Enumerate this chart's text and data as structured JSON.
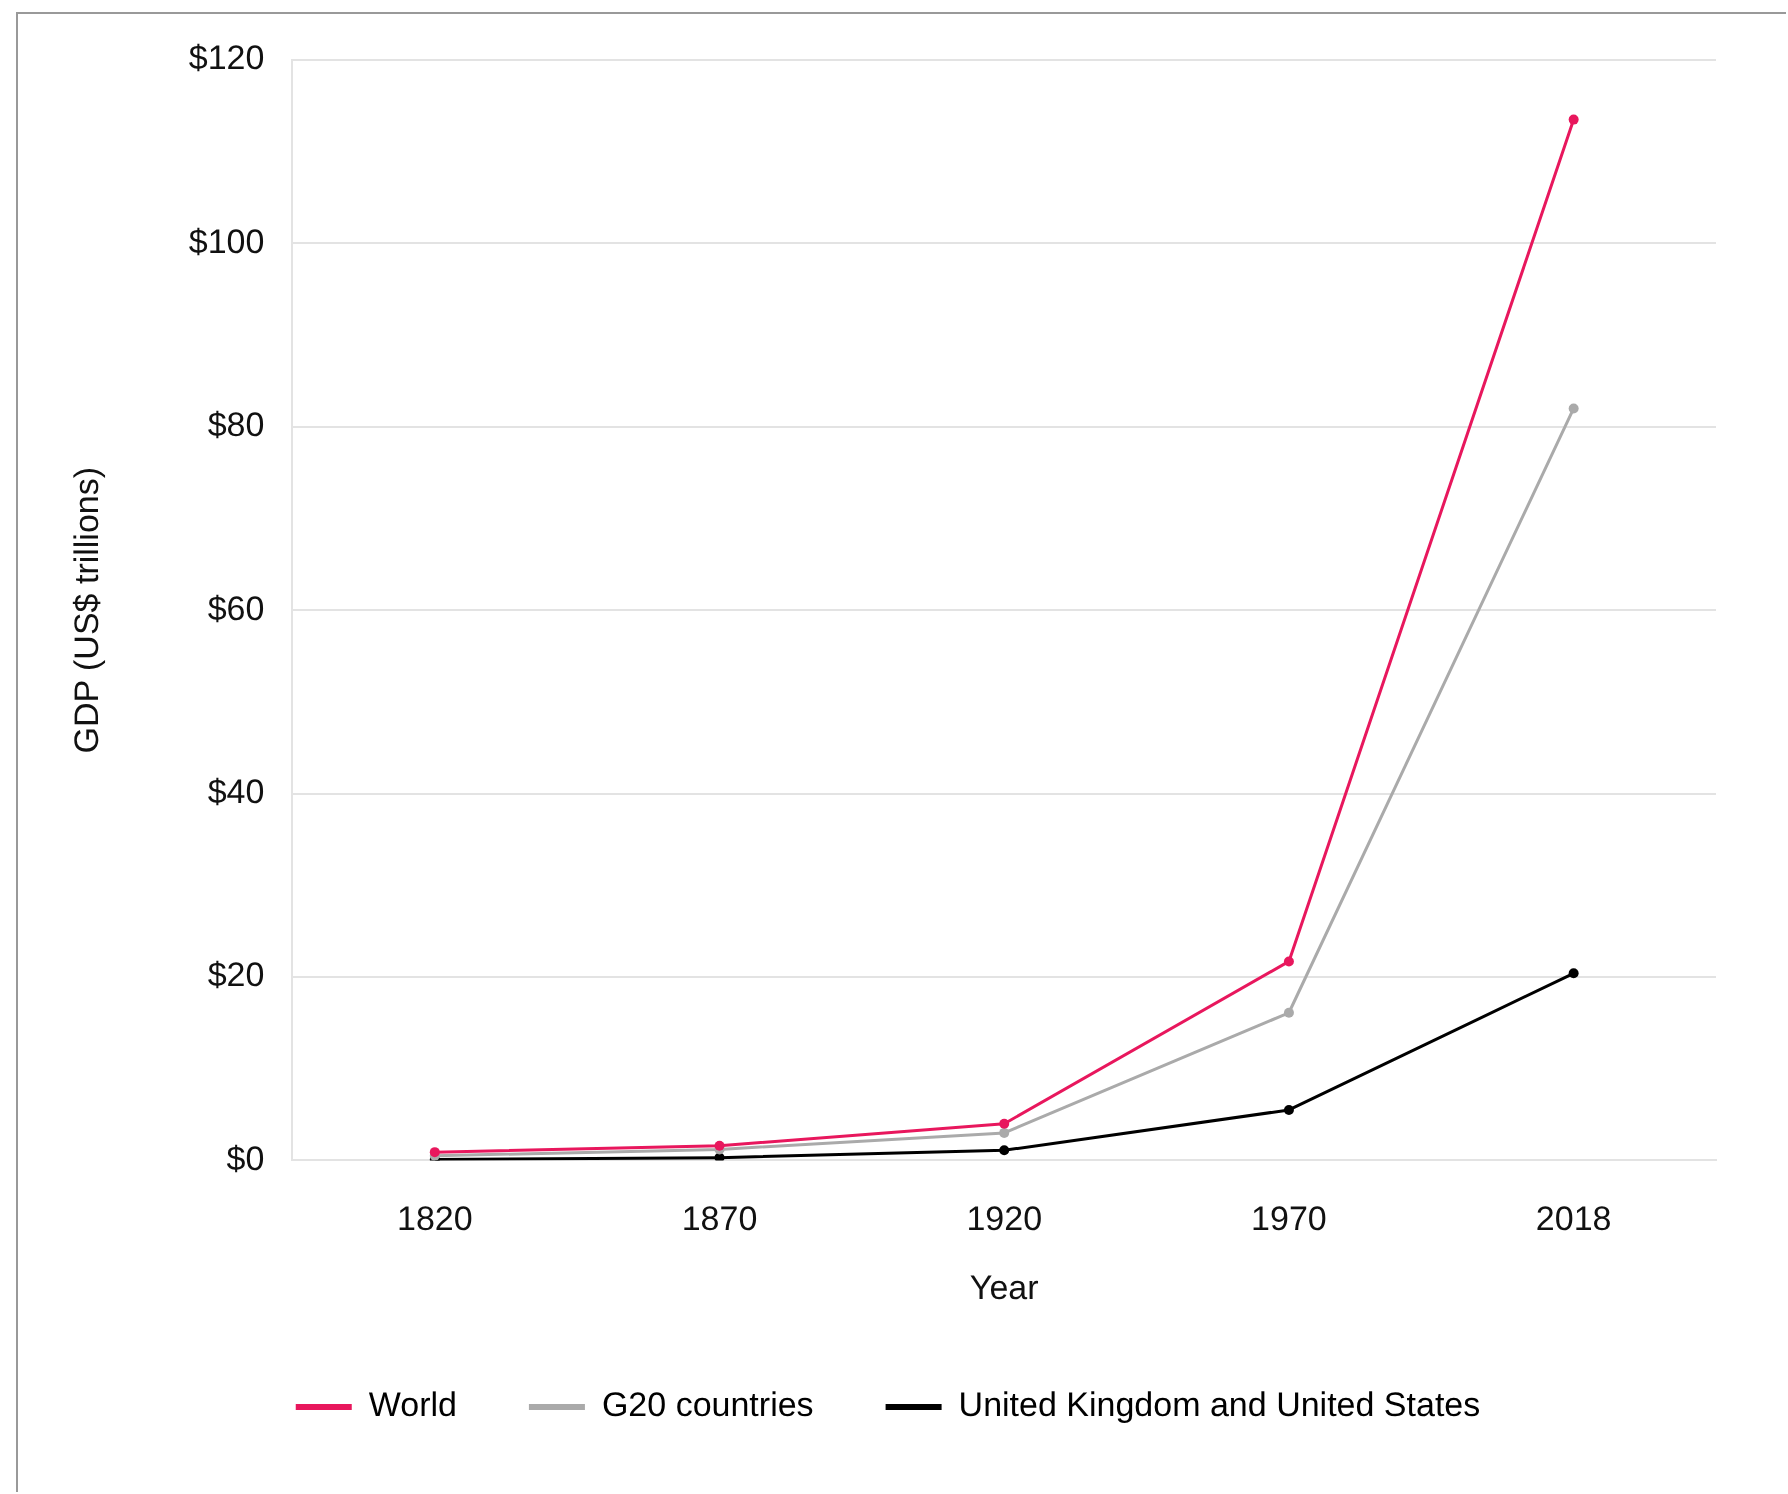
{
  "chart_data": {
    "type": "line",
    "xlabel": "Year",
    "ylabel": "GDP (US$ trillions)",
    "categories": [
      "1820",
      "1870",
      "1920",
      "1970",
      "2018"
    ],
    "series": [
      {
        "name": "World",
        "color": "#e8175d",
        "values": [
          0.9,
          1.6,
          4.0,
          21.7,
          113.5
        ]
      },
      {
        "name": "G20 countries",
        "color": "#aaaaaa",
        "values": [
          0.5,
          1.2,
          3.0,
          16.1,
          82
        ]
      },
      {
        "name": "United Kingdom and United States",
        "color": "#000000",
        "values": [
          0.1,
          0.3,
          1.1,
          5.5,
          20.4
        ]
      }
    ],
    "ylim": [
      0,
      120
    ],
    "yticks": [
      {
        "value": 0,
        "label": "$0"
      },
      {
        "value": 20,
        "label": "$20"
      },
      {
        "value": 40,
        "label": "$40"
      },
      {
        "value": 60,
        "label": "$60"
      },
      {
        "value": 80,
        "label": "$80"
      },
      {
        "value": 100,
        "label": "$100"
      },
      {
        "value": 120,
        "label": "$120"
      }
    ],
    "grid": "y",
    "legend": "bottom",
    "marker": "circle",
    "line_style": "solid"
  }
}
